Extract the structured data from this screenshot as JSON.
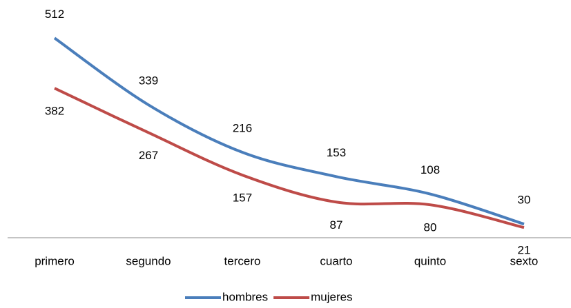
{
  "chart_data": {
    "type": "line",
    "categories": [
      "primero",
      "segundo",
      "tercero",
      "cuarto",
      "quinto",
      "sexto"
    ],
    "series": [
      {
        "name": "hombres",
        "color": "#4a7ebb",
        "values": [
          512,
          339,
          216,
          153,
          108,
          30
        ]
      },
      {
        "name": "mujeres",
        "color": "#be4b48",
        "values": [
          382,
          267,
          157,
          87,
          80,
          21
        ]
      }
    ],
    "ylim": [
      0,
      600
    ],
    "legend": "bottom",
    "smooth": true
  }
}
